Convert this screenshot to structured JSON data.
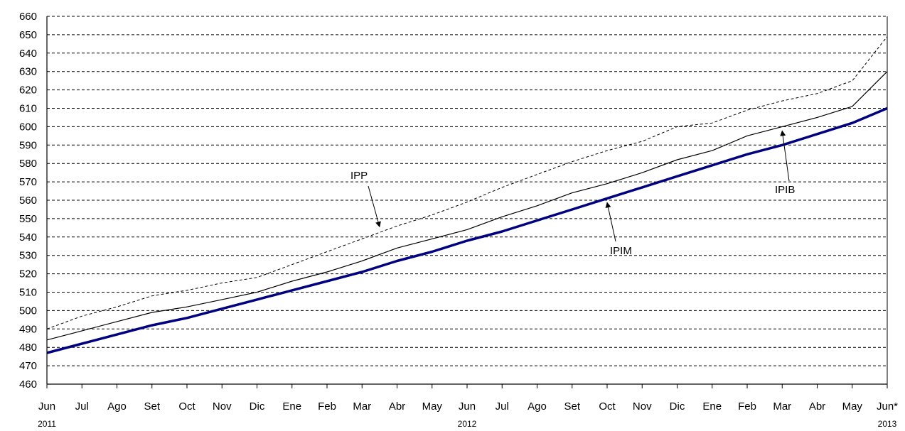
{
  "chart_data": {
    "type": "line",
    "title": "",
    "xlabel": "",
    "ylabel": "",
    "ylim": [
      460,
      660
    ],
    "y_ticks": [
      460,
      470,
      480,
      490,
      500,
      510,
      520,
      530,
      540,
      550,
      560,
      570,
      580,
      590,
      600,
      610,
      620,
      630,
      640,
      650,
      660
    ],
    "grid": "horizontal dashed",
    "categories": [
      "Jun",
      "Jul",
      "Ago",
      "Set",
      "Oct",
      "Nov",
      "Dic",
      "Ene",
      "Feb",
      "Mar",
      "Abr",
      "May",
      "Jun",
      "Jul",
      "Ago",
      "Set",
      "Oct",
      "Nov",
      "Dic",
      "Ene",
      "Feb",
      "Mar",
      "Abr",
      "May",
      "Jun*"
    ],
    "year_labels": [
      {
        "label": "2011",
        "index": 0
      },
      {
        "label": "2012",
        "index": 12
      },
      {
        "label": "2013",
        "index": 24
      }
    ],
    "series": [
      {
        "name": "IPP",
        "style": "dashed",
        "color": "#000000",
        "values": [
          490,
          497,
          502,
          508,
          511,
          515,
          518,
          525,
          532,
          539,
          546,
          552,
          559,
          567,
          574,
          581,
          587,
          592,
          600,
          602,
          609,
          614,
          618,
          625,
          649
        ]
      },
      {
        "name": "IPIB",
        "style": "solid",
        "color": "#000000",
        "values": [
          484,
          489,
          494,
          499,
          502,
          506,
          510,
          516,
          521,
          527,
          534,
          539,
          544,
          551,
          557,
          564,
          569,
          575,
          582,
          587,
          595,
          600,
          605,
          611,
          630
        ]
      },
      {
        "name": "IPIM",
        "style": "thick",
        "color": "#000080",
        "values": [
          477,
          482,
          487,
          492,
          496,
          501,
          506,
          511,
          516,
          521,
          527,
          532,
          538,
          543,
          549,
          555,
          561,
          567,
          573,
          579,
          585,
          590,
          596,
          602,
          610
        ]
      }
    ],
    "annotations": [
      {
        "text": "IPP",
        "series": "IPP",
        "point_index": 9.5
      },
      {
        "text": "IPIM",
        "series": "IPIM",
        "point_index": 16
      },
      {
        "text": "IPIB",
        "series": "IPIB",
        "point_index": 21
      }
    ]
  }
}
